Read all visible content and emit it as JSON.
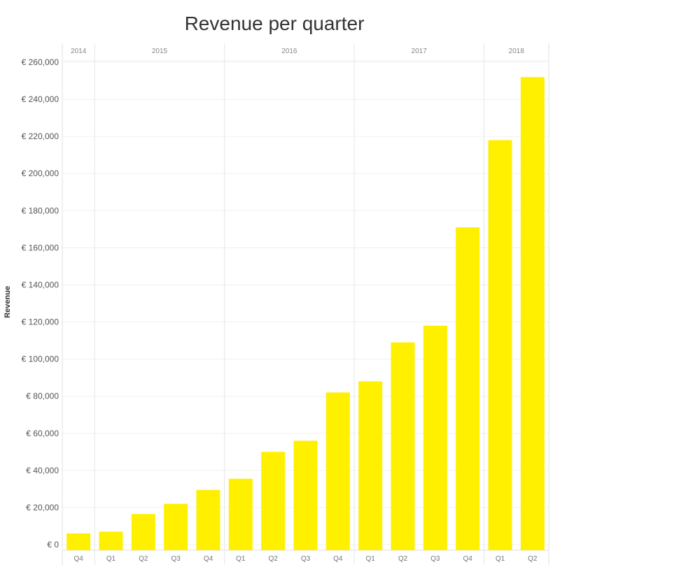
{
  "chart_data": {
    "type": "bar",
    "title": "Revenue per quarter",
    "xlabel": "",
    "ylabel": "Revenue",
    "ylim": [
      0,
      270000
    ],
    "y_ticks": [
      "€ 0",
      "€ 20,000",
      "€ 40,000",
      "€ 60,000",
      "€ 80,000",
      "€ 100,000",
      "€ 120,000",
      "€ 140,000",
      "€ 160,000",
      "€ 180,000",
      "€ 200,000",
      "€ 220,000",
      "€ 240,000",
      "€ 260,000"
    ],
    "y_tick_values": [
      0,
      20000,
      40000,
      60000,
      80000,
      100000,
      120000,
      140000,
      160000,
      180000,
      200000,
      220000,
      240000,
      260000
    ],
    "years": [
      {
        "label": "2014",
        "quarters": 1
      },
      {
        "label": "2015",
        "quarters": 4
      },
      {
        "label": "2016",
        "quarters": 4
      },
      {
        "label": "2017",
        "quarters": 4
      },
      {
        "label": "2018",
        "quarters": 2
      }
    ],
    "categories": [
      "Q4",
      "Q1",
      "Q2",
      "Q3",
      "Q4",
      "Q1",
      "Q2",
      "Q3",
      "Q4",
      "Q1",
      "Q2",
      "Q3",
      "Q4",
      "Q1",
      "Q2"
    ],
    "values": [
      6000,
      7000,
      16500,
      22000,
      29500,
      35500,
      50000,
      56000,
      82000,
      88000,
      109000,
      118000,
      171000,
      218000,
      252000
    ],
    "bar_color": "#fff000",
    "grid": true
  }
}
